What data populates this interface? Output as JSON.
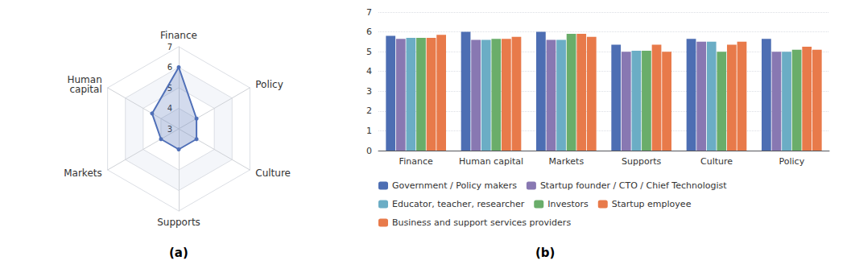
{
  "chart_data": [
    {
      "type": "radar",
      "categories": [
        "Finance",
        "Human\ncapital",
        "Markets",
        "Supports",
        "Culture",
        "Policy"
      ],
      "values": [
        6.0,
        4.5,
        4.0,
        4.0,
        4.0,
        4.0
      ],
      "color": "#5070B8",
      "ylim": [
        3,
        7
      ],
      "yticks": [
        3,
        4,
        5,
        6,
        7
      ],
      "grid": true,
      "annotations": [
        "(a)"
      ]
    },
    {
      "type": "bar",
      "categories": [
        "Finance",
        "Human capital",
        "Markets",
        "Supports",
        "Culture",
        "Policy"
      ],
      "series": [
        {
          "name": "Government / Policy makers",
          "color": "#4D6EB3",
          "values": [
            5.8,
            6.0,
            6.0,
            5.35,
            5.65,
            5.65
          ]
        },
        {
          "name": "Startup founder / CTO / Chief Technologist",
          "color": "#8878B2",
          "values": [
            5.65,
            5.6,
            5.6,
            5.0,
            5.5,
            5.0
          ]
        },
        {
          "name": "Educator, teacher, researcher",
          "color": "#6BADC5",
          "values": [
            5.7,
            5.6,
            5.6,
            5.05,
            5.5,
            5.0
          ]
        },
        {
          "name": "Investors",
          "color": "#6AAD6A",
          "values": [
            5.7,
            5.65,
            5.9,
            5.05,
            5.0,
            5.1
          ]
        },
        {
          "name": "Startup employee",
          "color": "#E87A4A",
          "values": [
            5.7,
            5.65,
            5.9,
            5.35,
            5.35,
            5.25
          ]
        },
        {
          "name": "Business and support services providers",
          "color": "#E87A4A",
          "values": [
            5.85,
            5.75,
            5.75,
            5.0,
            5.5,
            5.1
          ]
        }
      ],
      "ylim": [
        0,
        7
      ],
      "yticks": [
        0,
        1,
        2,
        3,
        4,
        5,
        6,
        7
      ],
      "grid": true,
      "legend": "bottom",
      "annotations": [
        "(b)"
      ]
    }
  ]
}
